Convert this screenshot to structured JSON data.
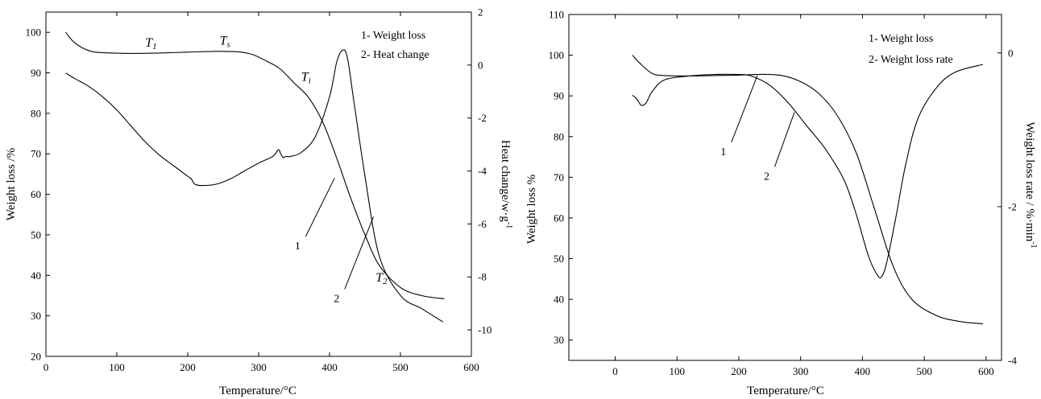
{
  "chart_data": [
    {
      "type": "line",
      "xlabel": "Temperature/°C",
      "ylabel": "Weight loss /%",
      "y2label": "Heat change/w·g",
      "y2label_sup": "-1",
      "xlim": [
        0,
        600
      ],
      "ylim": [
        20,
        105
      ],
      "y2lim": [
        -11,
        2
      ],
      "xticks": [
        0,
        100,
        200,
        300,
        400,
        500,
        600
      ],
      "yticks": [
        20,
        30,
        40,
        50,
        60,
        70,
        80,
        90,
        100
      ],
      "y2ticks": [
        -10,
        -8,
        -6,
        -4,
        -2,
        0,
        2
      ],
      "legend": [
        "1- Weight loss",
        "2- Heat change"
      ],
      "annotations": [
        {
          "text": "T",
          "sub": "1",
          "x": 140,
          "y": 96.5
        },
        {
          "text": "T",
          "sub": "s",
          "x": 245,
          "y": 97
        },
        {
          "text": "T",
          "sub": "i",
          "x": 360,
          "y": 88
        },
        {
          "text": "T",
          "sub": "2",
          "x": 465,
          "y": 38.5
        }
      ],
      "curve_labels": [
        {
          "text": "1",
          "x": 355,
          "y": 48,
          "to_x": 407,
          "to_y": 64
        },
        {
          "text": "2",
          "x": 410,
          "y": 35,
          "to_x": 462,
          "to_y": 54.5
        }
      ],
      "series": [
        {
          "axis": "left",
          "x": [
            28,
            40,
            60,
            80,
            120,
            160,
            200,
            240,
            270,
            290,
            310,
            330,
            350,
            370,
            390,
            410,
            430,
            450,
            470,
            500,
            530,
            562
          ],
          "y": [
            100,
            97.5,
            95.5,
            95.0,
            94.8,
            94.9,
            95.1,
            95.3,
            95.2,
            94.6,
            93.0,
            91.0,
            87.5,
            84.0,
            78.0,
            69.0,
            59.0,
            50.0,
            42.5,
            37.0,
            35.0,
            34.2
          ]
        },
        {
          "axis": "right",
          "x": [
            28,
            40,
            60,
            80,
            100,
            120,
            140,
            160,
            180,
            200,
            205,
            210,
            220,
            240,
            260,
            280,
            300,
            320,
            328,
            331,
            335,
            338,
            345,
            360,
            380,
            400,
            410,
            418,
            425,
            435,
            450,
            470,
            500,
            530,
            560
          ],
          "y": [
            -0.3,
            -0.5,
            -0.8,
            -1.2,
            -1.7,
            -2.3,
            -2.9,
            -3.4,
            -3.8,
            -4.2,
            -4.3,
            -4.5,
            -4.55,
            -4.5,
            -4.3,
            -4.0,
            -3.7,
            -3.45,
            -3.2,
            -3.35,
            -3.5,
            -3.45,
            -3.45,
            -3.3,
            -2.7,
            -1.2,
            0.1,
            0.55,
            0.3,
            -1.5,
            -4.2,
            -7.2,
            -8.7,
            -9.2,
            -9.7
          ]
        }
      ]
    },
    {
      "type": "line",
      "xlabel": "Temperature/°C",
      "ylabel": "Weight loss %",
      "y2label": "Weight loss rate / %·min",
      "y2label_sup": "-1",
      "xlim": [
        -75,
        625
      ],
      "ylim": [
        25,
        110
      ],
      "y2lim": [
        -4,
        0.5
      ],
      "xticks": [
        0,
        100,
        200,
        300,
        400,
        500,
        600
      ],
      "yticks": [
        30,
        40,
        50,
        60,
        70,
        80,
        90,
        100,
        110
      ],
      "y2ticks": [
        -4,
        -2,
        0
      ],
      "legend": [
        "1- Weight loss",
        "2- Weight loss rate"
      ],
      "curve_labels": [
        {
          "text": "1",
          "x": 175,
          "y": 77,
          "to_x": 230,
          "to_y": 95
        },
        {
          "text": "2",
          "x": 245,
          "y": 71,
          "to_x": 290,
          "to_y": 86
        }
      ],
      "series": [
        {
          "axis": "left",
          "x": [
            28,
            40,
            60,
            80,
            120,
            160,
            200,
            240,
            270,
            300,
            330,
            360,
            390,
            420,
            450,
            480,
            520,
            560,
            595
          ],
          "y": [
            100,
            98,
            95.5,
            95.0,
            94.9,
            95.0,
            95.1,
            95.3,
            95.0,
            93.5,
            90.5,
            85.0,
            76.0,
            62.0,
            48.0,
            40.0,
            36.0,
            34.5,
            34.0
          ]
        },
        {
          "axis": "right",
          "x": [
            28,
            35,
            42,
            50,
            60,
            80,
            120,
            160,
            200,
            220,
            250,
            280,
            310,
            340,
            370,
            390,
            410,
            425,
            432,
            440,
            455,
            470,
            490,
            520,
            550,
            595
          ],
          "y": [
            -0.55,
            -0.6,
            -0.68,
            -0.65,
            -0.5,
            -0.35,
            -0.3,
            -0.28,
            -0.28,
            -0.3,
            -0.42,
            -0.65,
            -0.95,
            -1.25,
            -1.65,
            -2.1,
            -2.65,
            -2.9,
            -2.9,
            -2.7,
            -2.1,
            -1.45,
            -0.85,
            -0.45,
            -0.25,
            -0.15
          ]
        }
      ]
    }
  ]
}
